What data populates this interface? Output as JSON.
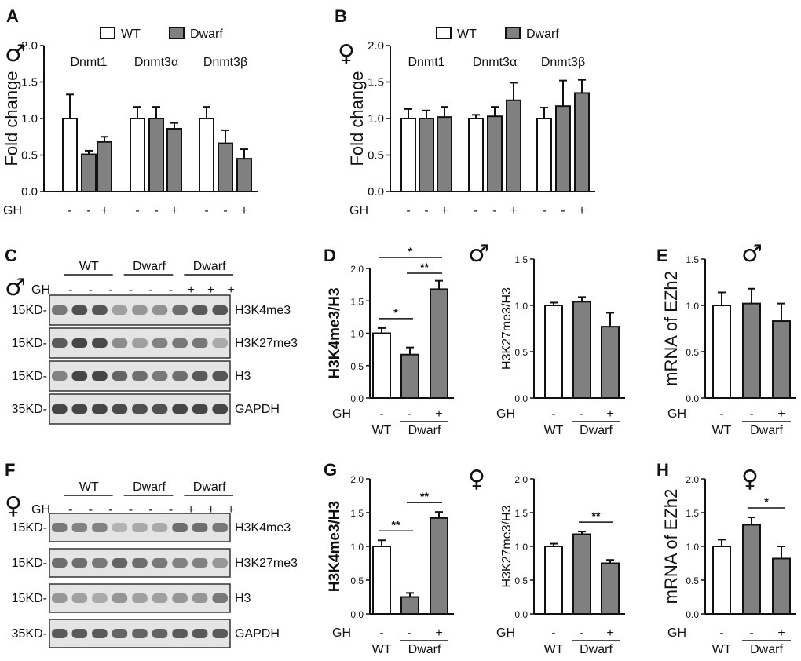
{
  "chart_data": [
    {
      "panel": "A",
      "type": "bar",
      "sex_symbol": "♂",
      "ylabel": "Fold change",
      "ylim": [
        0,
        2
      ],
      "yticks": [
        "0.0",
        "0.5",
        "1.0",
        "1.5",
        "2.0"
      ],
      "legend": [
        "WT",
        "Dwarf"
      ],
      "legend_placement": "top",
      "groups": [
        "Dnmt1",
        "Dnmt3α",
        "Dnmt3β"
      ],
      "row_label": "GH",
      "gh": [
        "-",
        "-",
        "+",
        "-",
        "-",
        "+",
        "-",
        "-",
        "+"
      ],
      "values": [
        1.0,
        0.51,
        0.68,
        1.0,
        1.0,
        0.86,
        1.0,
        0.66,
        0.45
      ],
      "errors": [
        0.33,
        0.05,
        0.07,
        0.16,
        0.16,
        0.08,
        0.16,
        0.18,
        0.13
      ],
      "series": [
        "WT",
        "Dwarf",
        "Dwarf",
        "WT",
        "Dwarf",
        "Dwarf",
        "WT",
        "Dwarf",
        "Dwarf"
      ]
    },
    {
      "panel": "B",
      "type": "bar",
      "sex_symbol": "♀",
      "ylabel": "Fold change",
      "ylim": [
        0,
        2
      ],
      "yticks": [
        "0.0",
        "0.5",
        "1.0",
        "1.5",
        "2.0"
      ],
      "legend": [
        "WT",
        "Dwarf"
      ],
      "legend_placement": "top",
      "groups": [
        "Dnmt1",
        "Dnmt3α",
        "Dnmt3β"
      ],
      "row_label": "GH",
      "gh": [
        "-",
        "-",
        "+",
        "-",
        "-",
        "+",
        "-",
        "-",
        "+"
      ],
      "values": [
        1.0,
        1.0,
        1.02,
        1.0,
        1.03,
        1.25,
        1.0,
        1.17,
        1.35
      ],
      "errors": [
        0.13,
        0.11,
        0.14,
        0.05,
        0.13,
        0.24,
        0.15,
        0.35,
        0.18
      ],
      "series": [
        "WT",
        "Dwarf",
        "Dwarf",
        "WT",
        "Dwarf",
        "Dwarf",
        "WT",
        "Dwarf",
        "Dwarf"
      ]
    },
    {
      "panel": "D",
      "type": "bar",
      "sex_symbol": "♂",
      "ylabel": "H3K4me3/H3",
      "ylim": [
        0,
        2
      ],
      "yticks": [
        "0.0",
        "0.5",
        "1.0",
        "1.5",
        "2.0"
      ],
      "row_label": "GH",
      "gh": [
        "-",
        "-",
        "+"
      ],
      "xgroups": [
        "WT",
        "Dwarf"
      ],
      "values": [
        1.0,
        0.67,
        1.68
      ],
      "errors": [
        0.08,
        0.11,
        0.13
      ],
      "series": [
        "WT",
        "Dwarf",
        "Dwarf"
      ],
      "significance": [
        {
          "pair": [
            0,
            1
          ],
          "label": "*"
        },
        {
          "pair": [
            1,
            2
          ],
          "label": "**"
        },
        {
          "pair": [
            0,
            2
          ],
          "label": "*"
        }
      ]
    },
    {
      "panel": "D2",
      "type": "bar",
      "ylabel": "H3K27me3/H3",
      "ylim": [
        0,
        1.5
      ],
      "yticks": [
        "0.0",
        "0.5",
        "1.0",
        "1.5"
      ],
      "row_label": "GH",
      "gh": [
        "-",
        "-",
        "+"
      ],
      "xgroups": [
        "WT",
        "Dwarf"
      ],
      "values": [
        1.0,
        1.04,
        0.77
      ],
      "errors": [
        0.03,
        0.05,
        0.15
      ],
      "series": [
        "WT",
        "Dwarf",
        "Dwarf"
      ],
      "significance": []
    },
    {
      "panel": "E",
      "type": "bar",
      "sex_symbol": "♂",
      "ylabel": "mRNA of EZh2",
      "ylim": [
        0,
        1.5
      ],
      "yticks": [
        "0.0",
        "0.5",
        "1.0",
        "1.5"
      ],
      "row_label": "GH",
      "gh": [
        "-",
        "-",
        "+"
      ],
      "xgroups": [
        "WT",
        "Dwarf"
      ],
      "values": [
        1.0,
        1.02,
        0.83
      ],
      "errors": [
        0.14,
        0.16,
        0.19
      ],
      "series": [
        "WT",
        "Dwarf",
        "Dwarf"
      ],
      "significance": []
    },
    {
      "panel": "G",
      "type": "bar",
      "ylabel": "H3K4me3/H3",
      "ylim": [
        0,
        2
      ],
      "yticks": [
        "0.0",
        "0.5",
        "1.0",
        "1.5",
        "2.0"
      ],
      "row_label": "GH",
      "gh": [
        "-",
        "-",
        "+"
      ],
      "xgroups": [
        "WT",
        "Dwarf"
      ],
      "values": [
        1.0,
        0.25,
        1.42
      ],
      "errors": [
        0.09,
        0.06,
        0.09
      ],
      "series": [
        "WT",
        "Dwarf",
        "Dwarf"
      ],
      "significance": [
        {
          "pair": [
            0,
            1
          ],
          "label": "**"
        },
        {
          "pair": [
            1,
            2
          ],
          "label": "**"
        }
      ]
    },
    {
      "panel": "G2",
      "type": "bar",
      "sex_symbol": "♀",
      "ylabel": "H3K27me3/H3",
      "ylim": [
        0,
        2
      ],
      "yticks": [
        "0.0",
        "0.5",
        "1.0",
        "1.5",
        "2.0"
      ],
      "row_label": "GH",
      "gh": [
        "-",
        "-",
        "+"
      ],
      "xgroups": [
        "WT",
        "Dwarf"
      ],
      "values": [
        1.0,
        1.18,
        0.75
      ],
      "errors": [
        0.04,
        0.04,
        0.05
      ],
      "series": [
        "WT",
        "Dwarf",
        "Dwarf"
      ],
      "significance": [
        {
          "pair": [
            1,
            2
          ],
          "label": "**"
        }
      ]
    },
    {
      "panel": "H",
      "type": "bar",
      "sex_symbol": "♀",
      "ylabel": "mRNA of EZh2",
      "ylim": [
        0,
        2
      ],
      "yticks": [
        "0.0",
        "0.5",
        "1.0",
        "1.5",
        "2.0"
      ],
      "row_label": "GH",
      "gh": [
        "-",
        "-",
        "+"
      ],
      "xgroups": [
        "WT",
        "Dwarf"
      ],
      "values": [
        1.0,
        1.32,
        0.82
      ],
      "errors": [
        0.1,
        0.11,
        0.18
      ],
      "series": [
        "WT",
        "Dwarf",
        "Dwarf"
      ],
      "significance": [
        {
          "pair": [
            1,
            2
          ],
          "label": "*"
        }
      ]
    }
  ],
  "blots": [
    {
      "panel": "C",
      "sex_symbol": "♂",
      "groups": [
        "WT",
        "Dwarf",
        "Dwarf"
      ],
      "row_label": "GH",
      "gh": [
        "-",
        "-",
        "-",
        "-",
        "-",
        "-",
        "+",
        "+",
        "+"
      ],
      "rows": [
        {
          "marker": "15KD-",
          "protein": "H3K4me3",
          "lanes": [
            0.55,
            0.75,
            0.72,
            0.35,
            0.4,
            0.42,
            0.6,
            0.7,
            0.72
          ]
        },
        {
          "marker": "15KD-",
          "protein": "H3K27me3",
          "lanes": [
            0.7,
            0.8,
            0.78,
            0.45,
            0.35,
            0.5,
            0.55,
            0.55,
            0.3
          ]
        },
        {
          "marker": "15KD-",
          "protein": "H3",
          "lanes": [
            0.5,
            0.8,
            0.8,
            0.65,
            0.6,
            0.55,
            0.6,
            0.7,
            0.72
          ]
        },
        {
          "marker": "35KD-",
          "protein": "GAPDH",
          "lanes": [
            0.8,
            0.8,
            0.8,
            0.78,
            0.75,
            0.75,
            0.8,
            0.8,
            0.8
          ]
        }
      ]
    },
    {
      "panel": "F",
      "sex_symbol": "♀",
      "groups": [
        "WT",
        "Dwarf",
        "Dwarf"
      ],
      "row_label": "GH",
      "gh": [
        "-",
        "-",
        "-",
        "-",
        "-",
        "-",
        "+",
        "+",
        "+"
      ],
      "rows": [
        {
          "marker": "15KD-",
          "protein": "H3K4me3",
          "lanes": [
            0.55,
            0.5,
            0.5,
            0.25,
            0.3,
            0.3,
            0.6,
            0.6,
            0.55
          ]
        },
        {
          "marker": "15KD-",
          "protein": "H3K27me3",
          "lanes": [
            0.6,
            0.6,
            0.55,
            0.65,
            0.6,
            0.55,
            0.5,
            0.5,
            0.4
          ]
        },
        {
          "marker": "15KD-",
          "protein": "H3",
          "lanes": [
            0.4,
            0.35,
            0.3,
            0.4,
            0.35,
            0.35,
            0.4,
            0.4,
            0.55
          ]
        },
        {
          "marker": "35KD-",
          "protein": "GAPDH",
          "lanes": [
            0.7,
            0.7,
            0.7,
            0.65,
            0.65,
            0.65,
            0.7,
            0.7,
            0.7
          ]
        }
      ]
    }
  ],
  "colors": {
    "wt": "#ffffff",
    "dwarf": "#808080",
    "axis": "#111111"
  }
}
